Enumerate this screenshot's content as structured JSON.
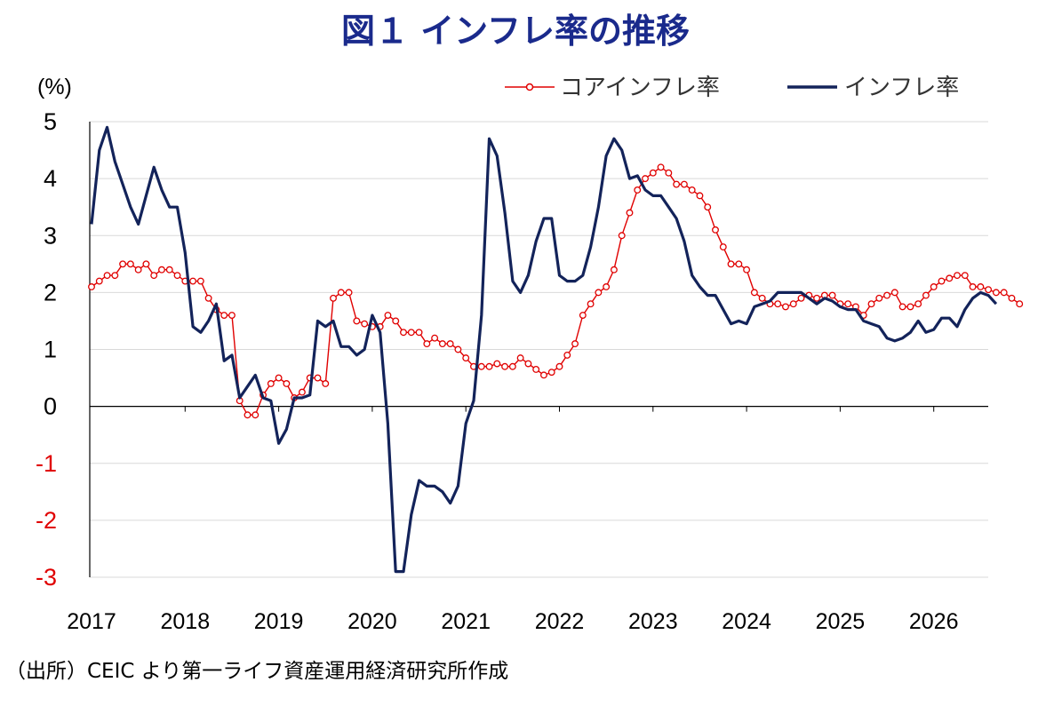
{
  "title": "図１ インフレ率の推移",
  "source_note": "（出所）CEIC より第一ライフ資産運用経済研究所作成",
  "colors": {
    "title": "#1a2a8c",
    "core": "#e00000",
    "headline": "#13235a",
    "negative_tick": "#e00000"
  },
  "chart_data": {
    "type": "line",
    "ylabel": "(%)",
    "ylim": [
      -3,
      5
    ],
    "yticks": [
      "5",
      "4",
      "3",
      "2",
      "1",
      "0",
      "-1",
      "-2",
      "-3"
    ],
    "xticks": [
      "2017",
      "2018",
      "2019",
      "2020",
      "2021",
      "2022",
      "2023",
      "2024",
      "2025",
      "2026"
    ],
    "grid": true,
    "legend_position": "top-right",
    "x_start": "2017-01",
    "series": [
      {
        "name": "コアインフレ率",
        "style": "line-with-open-circle-markers",
        "values": [
          2.1,
          2.2,
          2.3,
          2.3,
          2.5,
          2.5,
          2.4,
          2.5,
          2.3,
          2.4,
          2.4,
          2.3,
          2.2,
          2.2,
          2.2,
          1.9,
          1.7,
          1.6,
          1.6,
          0.1,
          -0.15,
          -0.15,
          0.2,
          0.4,
          0.5,
          0.4,
          0.15,
          0.25,
          0.5,
          0.5,
          0.4,
          1.9,
          2.0,
          2.0,
          1.5,
          1.45,
          1.4,
          1.4,
          1.6,
          1.5,
          1.3,
          1.3,
          1.3,
          1.1,
          1.2,
          1.1,
          1.1,
          1.0,
          0.85,
          0.7,
          0.7,
          0.7,
          0.75,
          0.7,
          0.7,
          0.85,
          0.75,
          0.65,
          0.55,
          0.6,
          0.7,
          0.9,
          1.1,
          1.6,
          1.8,
          2.0,
          2.1,
          2.4,
          3.0,
          3.4,
          3.8,
          4.0,
          4.1,
          4.2,
          4.1,
          3.9,
          3.9,
          3.8,
          3.7,
          3.5,
          3.1,
          2.8,
          2.5,
          2.5,
          2.4,
          2.0,
          1.9,
          1.8,
          1.8,
          1.75,
          1.8,
          1.9,
          1.95,
          1.9,
          1.95,
          1.95,
          1.8,
          1.8,
          1.75,
          1.6,
          1.8,
          1.9,
          1.95,
          2.0,
          1.75,
          1.75,
          1.8,
          1.95,
          2.1,
          2.2,
          2.25,
          2.3,
          2.3,
          2.1,
          2.1,
          2.05,
          2.0,
          2.0,
          1.9,
          1.8
        ]
      },
      {
        "name": "インフレ率",
        "style": "thick-line",
        "values": [
          3.2,
          4.5,
          4.9,
          4.3,
          3.9,
          3.5,
          3.2,
          3.7,
          4.2,
          3.8,
          3.5,
          3.5,
          2.7,
          1.4,
          1.3,
          1.5,
          1.8,
          0.8,
          0.9,
          0.15,
          0.35,
          0.55,
          0.15,
          0.1,
          -0.65,
          -0.4,
          0.15,
          0.15,
          0.2,
          1.5,
          1.4,
          1.5,
          1.05,
          1.05,
          0.9,
          1.0,
          1.6,
          1.3,
          -0.3,
          -2.9,
          -2.9,
          -1.9,
          -1.3,
          -1.4,
          -1.4,
          -1.5,
          -1.7,
          -1.4,
          -0.3,
          0.1,
          1.6,
          4.7,
          4.4,
          3.4,
          2.2,
          2.0,
          2.3,
          2.9,
          3.3,
          3.3,
          2.3,
          2.2,
          2.2,
          2.3,
          2.8,
          3.5,
          4.4,
          4.7,
          4.5,
          4.0,
          4.05,
          3.8,
          3.7,
          3.7,
          3.5,
          3.3,
          2.9,
          2.3,
          2.1,
          1.95,
          1.95,
          1.7,
          1.45,
          1.5,
          1.45,
          1.75,
          1.8,
          1.85,
          2.0,
          2.0,
          2.0,
          2.0,
          1.9,
          1.8,
          1.9,
          1.85,
          1.75,
          1.7,
          1.7,
          1.5,
          1.45,
          1.4,
          1.2,
          1.15,
          1.2,
          1.3,
          1.5,
          1.3,
          1.35,
          1.55,
          1.55,
          1.4,
          1.7,
          1.9,
          2.0,
          1.95,
          1.8
        ]
      }
    ]
  }
}
